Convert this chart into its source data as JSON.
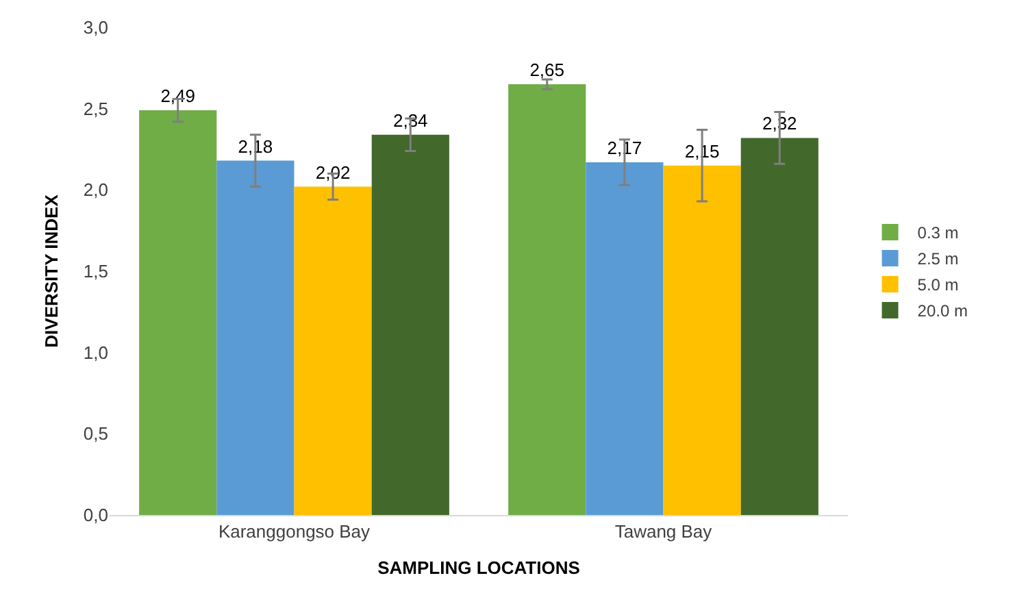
{
  "chart_data": {
    "type": "bar",
    "xlabel": "SAMPLING LOCATIONS",
    "ylabel": "DIVERSITY INDEX",
    "categories": [
      "Karanggongso Bay",
      "Tawang Bay"
    ],
    "series": [
      {
        "name": "0.3 m",
        "color": "#70ad47",
        "values": [
          2.49,
          2.65
        ],
        "errors": [
          0.07,
          0.03
        ],
        "value_labels": [
          "2,49",
          "2,65"
        ]
      },
      {
        "name": "2.5 m",
        "color": "#5b9bd5",
        "values": [
          2.18,
          2.17
        ],
        "errors": [
          0.16,
          0.14
        ],
        "value_labels": [
          "2,18",
          "2,17"
        ]
      },
      {
        "name": "5.0 m",
        "color": "#ffc000",
        "values": [
          2.02,
          2.15
        ],
        "errors": [
          0.08,
          0.22
        ],
        "value_labels": [
          "2,02",
          "2,15"
        ]
      },
      {
        "name": "20.0 m",
        "color": "#43682b",
        "values": [
          2.34,
          2.32
        ],
        "errors": [
          0.1,
          0.16
        ],
        "value_labels": [
          "2,34",
          "2,32"
        ]
      }
    ],
    "ylim": [
      0,
      3
    ],
    "yticks": [
      {
        "value": 0,
        "label": "0,0"
      },
      {
        "value": 0.5,
        "label": "0,5"
      },
      {
        "value": 1,
        "label": "1,0"
      },
      {
        "value": 1.5,
        "label": "1,5"
      },
      {
        "value": 2,
        "label": "2,0"
      },
      {
        "value": 2.5,
        "label": "2,5"
      },
      {
        "value": 3,
        "label": "3,0"
      }
    ],
    "legend": "right"
  }
}
